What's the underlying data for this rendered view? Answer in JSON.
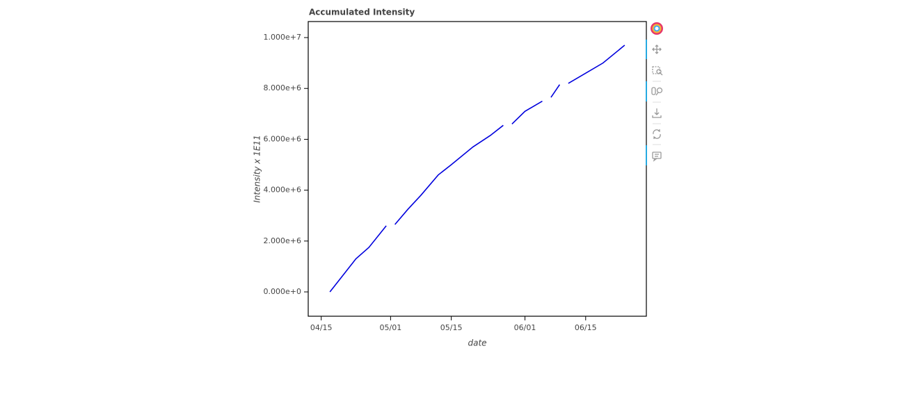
{
  "chart_data": {
    "type": "line",
    "title": "Accumulated Intensity",
    "x_label": "date",
    "y_label": "Intensity x 1E11",
    "x": [
      "04/17",
      "04/20",
      "04/23",
      "04/26",
      "04/30",
      "05/01",
      "05/02",
      "05/05",
      "05/08",
      "05/12",
      "05/15",
      "05/20",
      "05/24",
      "05/27",
      "05/28",
      "05/29",
      "06/01",
      "06/05",
      "06/06",
      "06/07",
      "06/09",
      "06/10",
      "06/11",
      "06/15",
      "06/19",
      "06/24"
    ],
    "values": [
      0,
      650000,
      1300000,
      1750000,
      2600000,
      null,
      2650000,
      3250000,
      3800000,
      4600000,
      5000000,
      5700000,
      6150000,
      6550000,
      null,
      6600000,
      7100000,
      7500000,
      null,
      7650000,
      8150000,
      null,
      8200000,
      8600000,
      9000000,
      9700000
    ],
    "color": "#0000dd",
    "xlim": [
      "04/12",
      "06/29"
    ],
    "xticks": [
      "04/15",
      "05/01",
      "05/15",
      "06/01",
      "06/15"
    ],
    "ylim": [
      -956000,
      10630000
    ],
    "yticks": [
      {
        "value": 0,
        "label": "0.000e+0"
      },
      {
        "value": 2000000,
        "label": "2.000e+6"
      },
      {
        "value": 4000000,
        "label": "4.000e+6"
      },
      {
        "value": 6000000,
        "label": "6.000e+6"
      },
      {
        "value": 8000000,
        "label": "8.000e+6"
      },
      {
        "value": 10000000,
        "label": "1.000e+7"
      }
    ],
    "grid": false
  }
}
